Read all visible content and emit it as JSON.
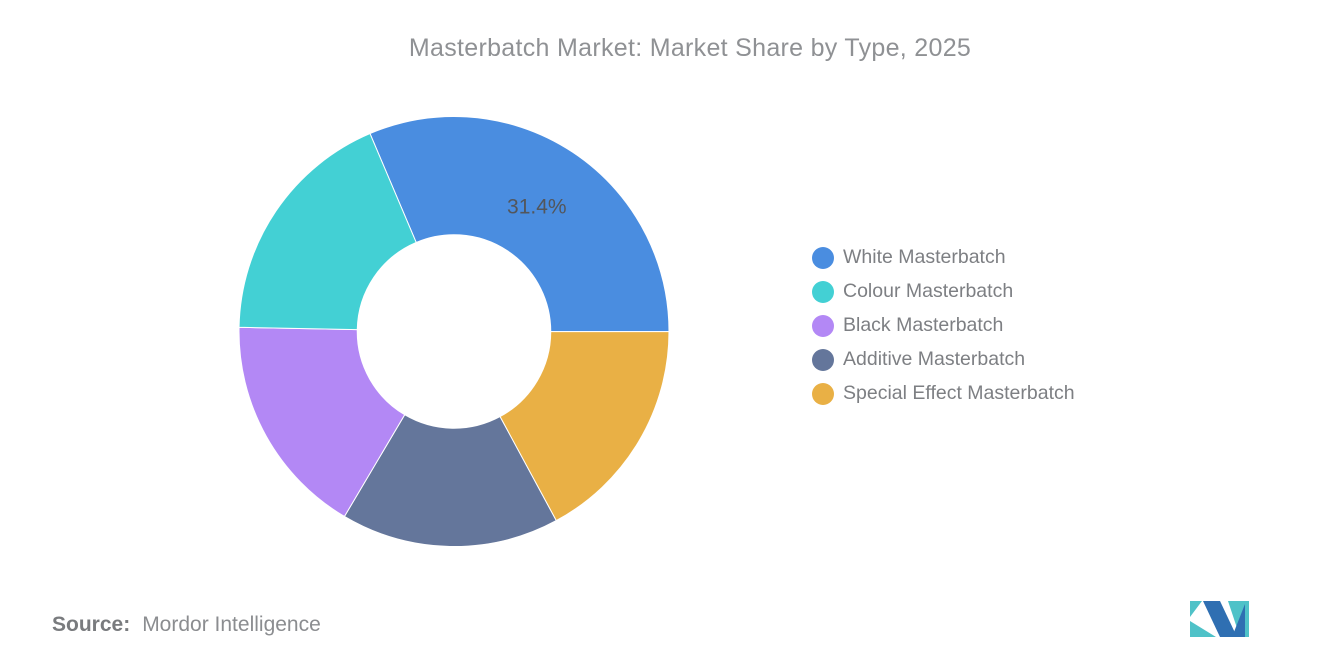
{
  "chart_data": {
    "type": "pie",
    "variant": "donut",
    "title": "Masterbatch Market: Market Share by Type, 2025",
    "start_angle_deg": -23,
    "direction": "clockwise",
    "inner_radius_ratio": 0.45,
    "slices": [
      {
        "label": "White Masterbatch",
        "value": 31.4,
        "color": "#4a8de0",
        "data_label": "31.4%"
      },
      {
        "label": "Special Effect Masterbatch",
        "value": 17.1,
        "color": "#e9b045"
      },
      {
        "label": "Additive Masterbatch",
        "value": 16.4,
        "color": "#64769b"
      },
      {
        "label": "Black Masterbatch",
        "value": 16.8,
        "color": "#b388f5"
      },
      {
        "label": "Colour Masterbatch",
        "value": 18.3,
        "color": "#43d0d4"
      }
    ],
    "legend": {
      "position": "right",
      "items": [
        {
          "label": "White Masterbatch",
          "color": "#4a8de0"
        },
        {
          "label": "Colour Masterbatch",
          "color": "#43d0d4"
        },
        {
          "label": "Black Masterbatch",
          "color": "#b388f5"
        },
        {
          "label": "Additive Masterbatch",
          "color": "#64769b"
        },
        {
          "label": "Special Effect Masterbatch",
          "color": "#e9b045"
        }
      ]
    }
  },
  "source": {
    "label": "Source:",
    "value": "Mordor Intelligence"
  },
  "logo": {
    "name": "mordor-intelligence-logo",
    "colors": {
      "teal": "#4fc2c8",
      "blue": "#2f6fb2"
    }
  }
}
